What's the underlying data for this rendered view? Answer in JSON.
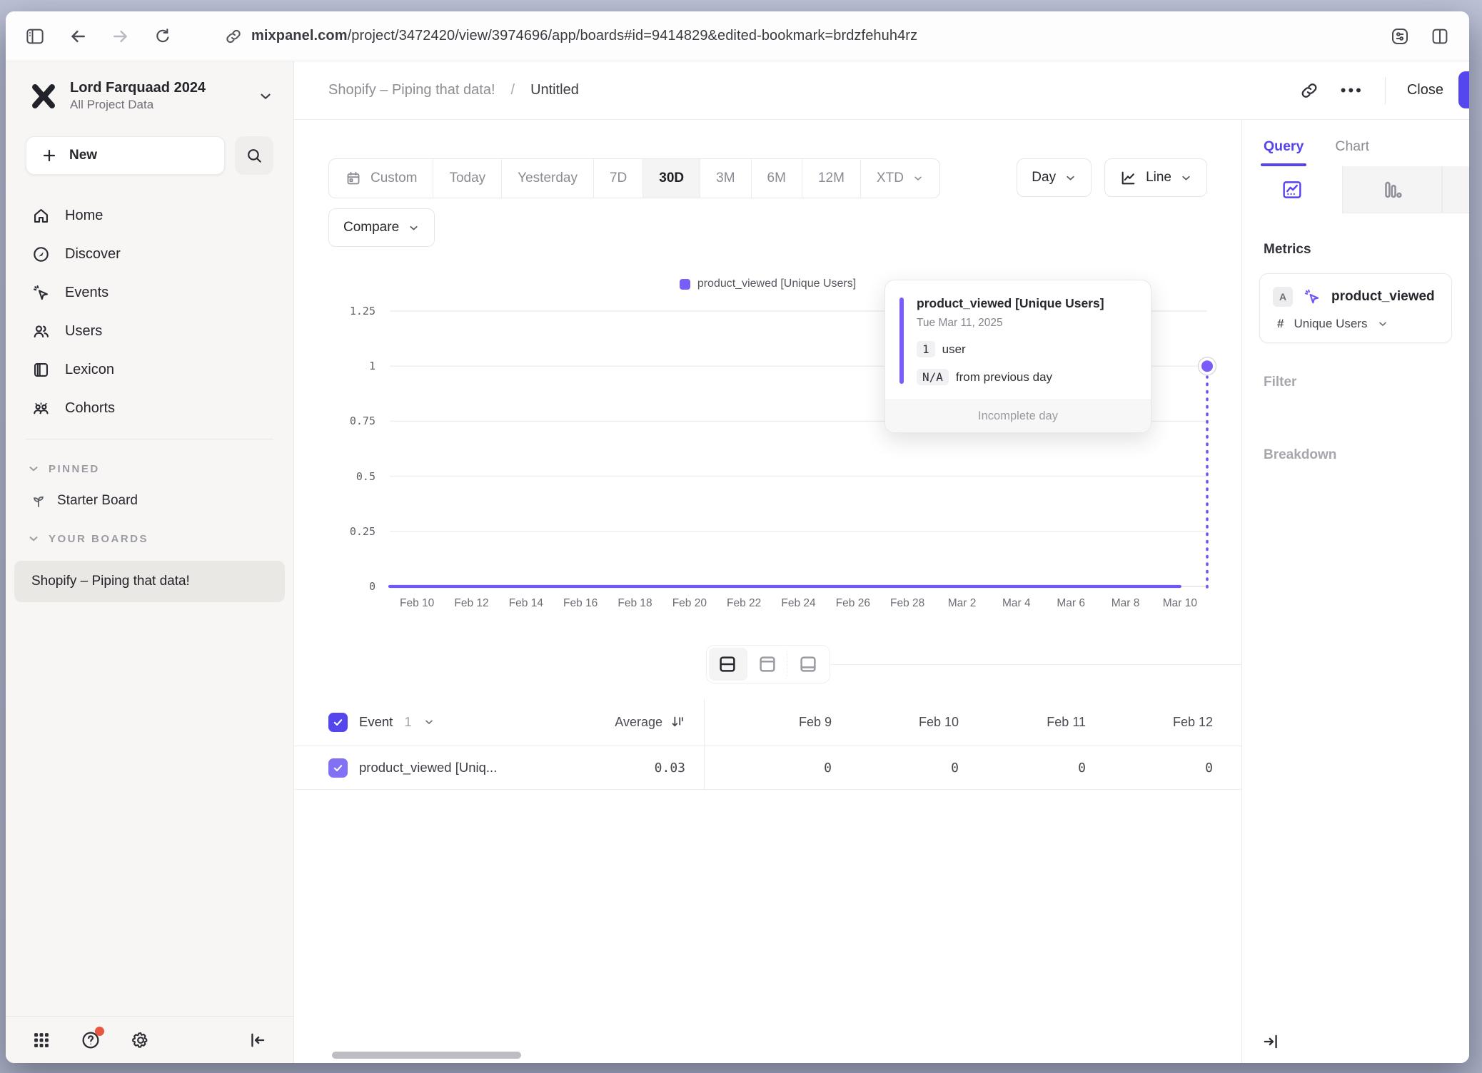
{
  "browser": {
    "url_domain": "mixpanel.com",
    "url_path": "/project/3472420/view/3974696/app/boards#id=9414829&edited-bookmark=brdzfehuh4rz"
  },
  "sidebar": {
    "workspace": {
      "name": "Lord Farquaad 2024",
      "subtitle": "All Project Data"
    },
    "new_label": "New",
    "nav": [
      {
        "label": "Home",
        "icon": "home-icon"
      },
      {
        "label": "Discover",
        "icon": "compass-icon"
      },
      {
        "label": "Events",
        "icon": "cursor-sparkle-icon"
      },
      {
        "label": "Users",
        "icon": "users-icon"
      },
      {
        "label": "Lexicon",
        "icon": "book-icon"
      },
      {
        "label": "Cohorts",
        "icon": "group-icon"
      }
    ],
    "pinned": {
      "title": "PINNED",
      "items": [
        "Starter Board"
      ]
    },
    "your_boards": {
      "title": "YOUR BOARDS",
      "items": [
        "Shopify – Piping that data!"
      ]
    }
  },
  "header": {
    "board": "Shopify – Piping that data!",
    "separator": "/",
    "report": "Untitled",
    "more": "•••",
    "close": "Close"
  },
  "controls": {
    "ranges": [
      "Custom",
      "Today",
      "Yesterday",
      "7D",
      "30D",
      "3M",
      "6M",
      "12M",
      "XTD"
    ],
    "active_range": "30D",
    "compare": "Compare",
    "granularity": "Day",
    "chart_type": "Line"
  },
  "chart_data": {
    "type": "line",
    "title": "",
    "legend": [
      "product_viewed [Unique Users]"
    ],
    "legend_position": "top",
    "grid": "horizontal",
    "ylim": [
      0,
      1.25
    ],
    "y_tick_labels": [
      "1.25",
      "1",
      "0.75",
      "0.5",
      "0.25",
      "0"
    ],
    "x_tick_labels": [
      "Feb 10",
      "Feb 12",
      "Feb 14",
      "Feb 16",
      "Feb 18",
      "Feb 20",
      "Feb 22",
      "Feb 24",
      "Feb 26",
      "Feb 28",
      "Mar 2",
      "Mar 4",
      "Mar 6",
      "Mar 8",
      "Mar 10"
    ],
    "x_tick_indices": [
      1,
      3,
      5,
      7,
      9,
      11,
      13,
      15,
      17,
      19,
      21,
      23,
      25,
      27,
      29
    ],
    "series": [
      {
        "name": "product_viewed [Unique Users]",
        "color": "#6e58f6",
        "marker_color": "#7a5cf8",
        "x": [
          "Feb 9",
          "Feb 10",
          "Feb 11",
          "Feb 12",
          "Feb 13",
          "Feb 14",
          "Feb 15",
          "Feb 16",
          "Feb 17",
          "Feb 18",
          "Feb 19",
          "Feb 20",
          "Feb 21",
          "Feb 22",
          "Feb 23",
          "Feb 24",
          "Feb 25",
          "Feb 26",
          "Feb 27",
          "Feb 28",
          "Mar 1",
          "Mar 2",
          "Mar 3",
          "Mar 4",
          "Mar 5",
          "Mar 6",
          "Mar 7",
          "Mar 8",
          "Mar 9",
          "Mar 10",
          "Mar 11"
        ],
        "values": [
          0,
          0,
          0,
          0,
          0,
          0,
          0,
          0,
          0,
          0,
          0,
          0,
          0,
          0,
          0,
          0,
          0,
          0,
          0,
          0,
          0,
          0,
          0,
          0,
          0,
          0,
          0,
          0,
          0,
          0,
          1
        ]
      }
    ],
    "incomplete_last_point": true
  },
  "tooltip": {
    "title": "product_viewed [Unique Users]",
    "date": "Tue Mar 11, 2025",
    "value": "1",
    "value_unit": "user",
    "delta": "N/A",
    "delta_text": "from previous day",
    "footer": "Incomplete day"
  },
  "table": {
    "event_header": "Event",
    "event_count": "1",
    "average_header": "Average",
    "date_headers": [
      "Feb 9",
      "Feb 10",
      "Feb 11",
      "Feb 12"
    ],
    "rows": [
      {
        "label": "product_viewed [Uniq...",
        "average": "0.03",
        "values": [
          "0",
          "0",
          "0",
          "0"
        ]
      }
    ]
  },
  "query_panel": {
    "tabs": [
      "Query",
      "Chart"
    ],
    "active_tab": "Query",
    "type_tabs": [
      "insights",
      "funnels",
      "flows"
    ],
    "metrics_title": "Metrics",
    "metric": {
      "letter": "A",
      "event": "product_viewed",
      "agg_symbol": "#",
      "aggregation": "Unique Users"
    },
    "filter_title": "Filter",
    "breakdown_title": "Breakdown"
  },
  "colors": {
    "accent": "#5443ef",
    "chart_line": "#6e58f6",
    "chart_marker": "#7a5cf8",
    "notification": "#e85540"
  }
}
